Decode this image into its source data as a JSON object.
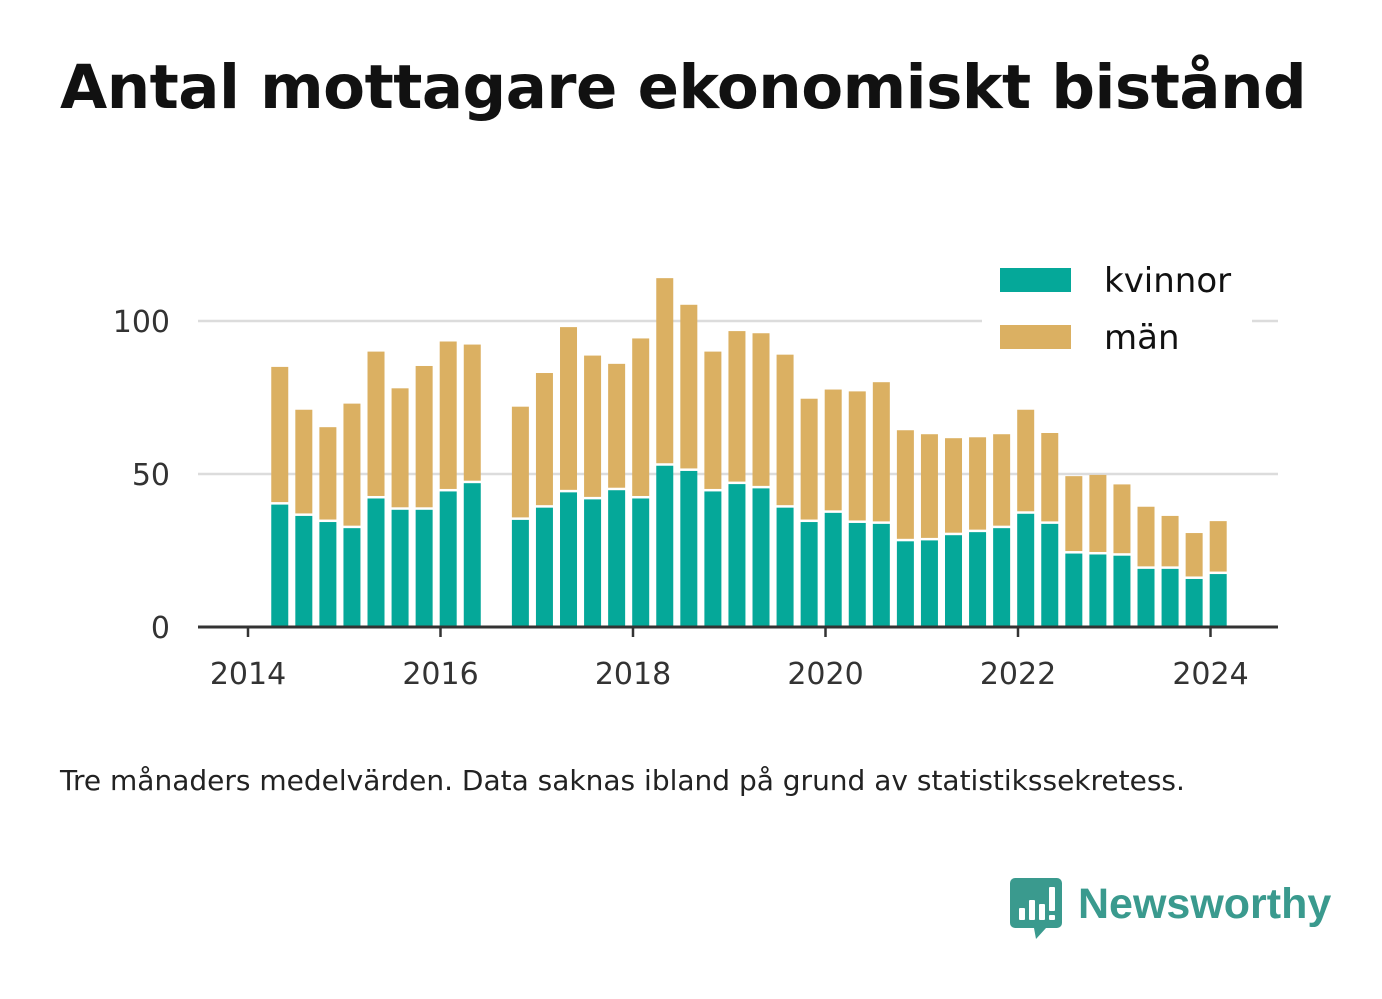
{
  "title": "Antal mottagare ekonomiskt bistånd",
  "note": "Tre månaders medelvärden. Data saknas ibland på grund av statistikssekretess.",
  "brand": {
    "name": "Newsworthy",
    "icon": "newsworthy-logo-icon"
  },
  "colors": {
    "kvinnor": "#05a899",
    "man": "#dbb062",
    "grid": "#dcdcdc",
    "axis": "#333333",
    "text": "#333333"
  },
  "chart_data": {
    "type": "bar",
    "stacked": true,
    "title": "Antal mottagare ekonomiskt bistånd",
    "xlabel": "",
    "ylabel": "",
    "ylim": [
      0,
      120
    ],
    "yticks": [
      0,
      50,
      100
    ],
    "xticks": [
      2014,
      2016,
      2018,
      2020,
      2022,
      2024
    ],
    "xlim": [
      2013.5,
      2024.7
    ],
    "grid": true,
    "legend_position": "top-right",
    "x": [
      2014.33,
      2014.58,
      2014.83,
      2015.08,
      2015.33,
      2015.58,
      2015.83,
      2016.08,
      2016.33,
      2016.83,
      2017.08,
      2017.33,
      2017.58,
      2017.83,
      2018.08,
      2018.33,
      2018.58,
      2018.83,
      2019.08,
      2019.33,
      2019.58,
      2019.83,
      2020.08,
      2020.33,
      2020.58,
      2020.83,
      2021.08,
      2021.33,
      2021.58,
      2021.83,
      2022.08,
      2022.33,
      2022.58,
      2022.83,
      2023.08,
      2023.33,
      2023.58,
      2023.83,
      2024.08
    ],
    "series": [
      {
        "name": "kvinnor",
        "values": [
          40,
          36.3,
          34.3,
          32.3,
          42,
          38.3,
          38.3,
          44.3,
          47,
          35,
          39,
          44,
          41.7,
          44.7,
          42,
          52.7,
          51,
          44.3,
          46.7,
          45.3,
          39,
          34.3,
          37.3,
          34,
          33.7,
          28,
          28.3,
          30,
          31,
          32.3,
          37,
          33.7,
          24,
          23.7,
          23.3,
          19,
          19,
          15.7,
          17.3
        ]
      },
      {
        "name": "män",
        "values": [
          45,
          34.7,
          31,
          40.7,
          48,
          39.7,
          47,
          49,
          45.3,
          37,
          44,
          54,
          47,
          41.3,
          52.3,
          61.3,
          54.3,
          45.7,
          50,
          50.7,
          50,
          40.3,
          40.3,
          43,
          46.3,
          36.3,
          34.7,
          31.7,
          31,
          30.7,
          34,
          29.7,
          25.3,
          26,
          23.3,
          20.3,
          17.3,
          15,
          17.3
        ]
      }
    ]
  }
}
